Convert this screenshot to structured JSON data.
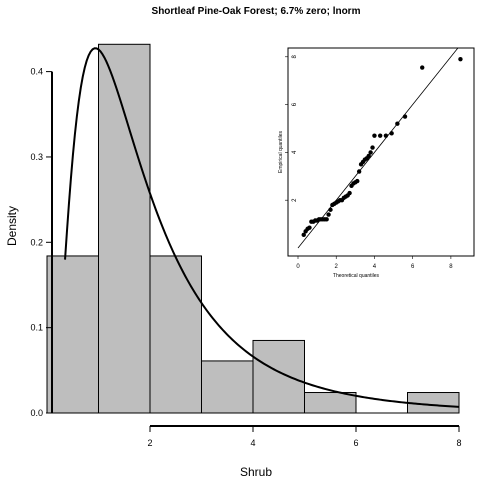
{
  "chart_data": [
    {
      "type": "bar",
      "title": "Shortleaf Pine-Oak Forest; 6.7% zero; lnorm",
      "xlabel": "Shrub",
      "ylabel": "Density",
      "xlim": [
        0,
        8
      ],
      "ylim": [
        0,
        0.43
      ],
      "x_ticks": [
        "2",
        "4",
        "6",
        "8"
      ],
      "y_ticks": [
        "0.0",
        "0.1",
        "0.2",
        "0.3",
        "0.4"
      ],
      "bins": [
        {
          "x0": 0,
          "x1": 1,
          "value": 0.184
        },
        {
          "x0": 1,
          "x1": 2,
          "value": 0.432
        },
        {
          "x0": 2,
          "x1": 3,
          "value": 0.184
        },
        {
          "x0": 3,
          "x1": 4,
          "value": 0.061
        },
        {
          "x0": 4,
          "x1": 5,
          "value": 0.085
        },
        {
          "x0": 5,
          "x1": 6,
          "value": 0.024
        },
        {
          "x0": 6,
          "x1": 7,
          "value": 0.0
        },
        {
          "x0": 7,
          "x1": 8,
          "value": 0.024
        }
      ],
      "curve": {
        "type": "line",
        "meanlog": 0.5,
        "sdlog": 0.75,
        "x_range": [
          0.35,
          8
        ]
      }
    },
    {
      "type": "scatter",
      "xlabel": "Theoretical quantiles",
      "ylabel": "Empirical quantiles",
      "xlim": [
        0,
        9
      ],
      "ylim": [
        0,
        8.2
      ],
      "x_ticks": [
        "0",
        "2",
        "4",
        "6",
        "8"
      ],
      "y_ticks": [
        "2",
        "4",
        "6",
        "8"
      ],
      "reference_line": [
        [
          0,
          0
        ],
        [
          9,
          9
        ]
      ],
      "points": [
        [
          0.3,
          0.55
        ],
        [
          0.4,
          0.7
        ],
        [
          0.5,
          0.8
        ],
        [
          0.6,
          0.85
        ],
        [
          0.7,
          1.1
        ],
        [
          0.8,
          1.1
        ],
        [
          0.9,
          1.15
        ],
        [
          1.0,
          1.15
        ],
        [
          1.1,
          1.2
        ],
        [
          1.2,
          1.2
        ],
        [
          1.3,
          1.2
        ],
        [
          1.4,
          1.2
        ],
        [
          1.5,
          1.2
        ],
        [
          1.6,
          1.4
        ],
        [
          1.7,
          1.6
        ],
        [
          1.8,
          1.8
        ],
        [
          1.9,
          1.85
        ],
        [
          2.0,
          1.9
        ],
        [
          2.1,
          1.95
        ],
        [
          2.2,
          2.0
        ],
        [
          2.3,
          2.0
        ],
        [
          2.4,
          2.1
        ],
        [
          2.5,
          2.15
        ],
        [
          2.6,
          2.2
        ],
        [
          2.7,
          2.3
        ],
        [
          2.8,
          2.6
        ],
        [
          2.9,
          2.7
        ],
        [
          3.0,
          2.75
        ],
        [
          3.1,
          2.8
        ],
        [
          3.2,
          3.2
        ],
        [
          3.3,
          3.5
        ],
        [
          3.4,
          3.6
        ],
        [
          3.5,
          3.7
        ],
        [
          3.6,
          3.75
        ],
        [
          3.7,
          3.85
        ],
        [
          3.8,
          4.0
        ],
        [
          3.9,
          4.2
        ],
        [
          4.0,
          4.7
        ],
        [
          4.3,
          4.7
        ],
        [
          4.6,
          4.7
        ],
        [
          4.9,
          4.8
        ],
        [
          5.2,
          5.2
        ],
        [
          5.6,
          5.5
        ],
        [
          6.5,
          7.55
        ],
        [
          8.5,
          7.9
        ]
      ]
    }
  ]
}
